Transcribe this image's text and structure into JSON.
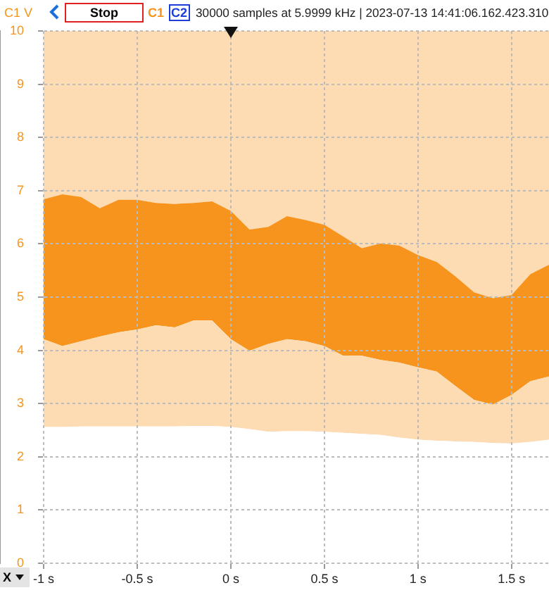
{
  "chart_data": {
    "type": "area",
    "title": "30000 samples at 5.9999 kHz | 2023-07-13 14:41:06.162.423.310",
    "ylabel": "C1 V",
    "annotations": [
      "Stop",
      "C1",
      "C2",
      "X"
    ],
    "x": [
      -1,
      -0.9,
      -0.8,
      -0.7,
      -0.6,
      -0.5,
      -0.4,
      -0.3,
      -0.2,
      -0.1,
      0,
      0.1,
      0.2,
      0.3,
      0.4,
      0.5,
      0.6,
      0.7,
      0.8,
      0.9,
      1.0,
      1.1,
      1.2,
      1.3,
      1.4,
      1.5,
      1.6,
      1.7
    ],
    "stacked": true,
    "series": [
      {
        "color": "#ffffff",
        "values": [
          2.56,
          2.56,
          2.57,
          2.57,
          2.57,
          2.57,
          2.57,
          2.57,
          2.58,
          2.58,
          2.56,
          2.52,
          2.47,
          2.48,
          2.48,
          2.47,
          2.45,
          2.43,
          2.41,
          2.36,
          2.32,
          2.3,
          2.29,
          2.28,
          2.26,
          2.25,
          2.28,
          2.32
        ]
      },
      {
        "color": "#fddcb4",
        "values": [
          1.65,
          1.52,
          1.6,
          1.69,
          1.77,
          1.82,
          1.9,
          1.86,
          1.98,
          1.98,
          1.65,
          1.47,
          1.65,
          1.73,
          1.69,
          1.61,
          1.45,
          1.47,
          1.41,
          1.41,
          1.36,
          1.3,
          1.04,
          0.79,
          0.72,
          0.91,
          1.14,
          1.19
        ]
      },
      {
        "color": "#f7941d",
        "values": [
          2.63,
          2.85,
          2.71,
          2.41,
          2.49,
          2.44,
          2.3,
          2.32,
          2.21,
          2.24,
          2.41,
          2.28,
          2.2,
          2.31,
          2.28,
          2.28,
          2.24,
          2.02,
          2.19,
          2.2,
          2.11,
          2.06,
          2.06,
          2.02,
          2.0,
          1.88,
          2.01,
          2.1
        ]
      },
      {
        "color": "#fddcb4",
        "values": [
          3.16,
          3.07,
          3.12,
          3.33,
          3.17,
          3.17,
          3.23,
          3.25,
          3.23,
          3.2,
          3.38,
          3.73,
          3.68,
          3.48,
          3.55,
          3.64,
          3.86,
          4.08,
          3.99,
          4.03,
          4.21,
          4.34,
          4.61,
          4.91,
          5.02,
          4.96,
          4.57,
          4.39
        ]
      }
    ],
    "xlim": [
      -1,
      1.7
    ],
    "xticks": [
      {
        "value": -1,
        "label": "-1 s"
      },
      {
        "value": -0.5,
        "label": "-0.5 s"
      },
      {
        "value": 0,
        "label": "0 s"
      },
      {
        "value": 0.5,
        "label": "0.5 s"
      },
      {
        "value": 1,
        "label": "1 s"
      },
      {
        "value": 1.5,
        "label": "1.5 s"
      }
    ],
    "ylim": [
      0,
      10
    ],
    "yticks": [
      0,
      1,
      2,
      3,
      4,
      5,
      6,
      7,
      8,
      9,
      10
    ],
    "grid": true,
    "legend": false
  }
}
